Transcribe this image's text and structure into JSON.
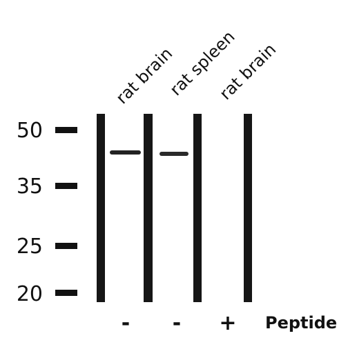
{
  "lanes": [
    {
      "label": "rat brain",
      "peptide": "-"
    },
    {
      "label": "rat spleen",
      "peptide": "-"
    },
    {
      "label": "rat brain",
      "peptide": "+"
    }
  ],
  "peptide_label": "Peptide",
  "markers": [
    "50",
    "35",
    "25",
    "20"
  ]
}
